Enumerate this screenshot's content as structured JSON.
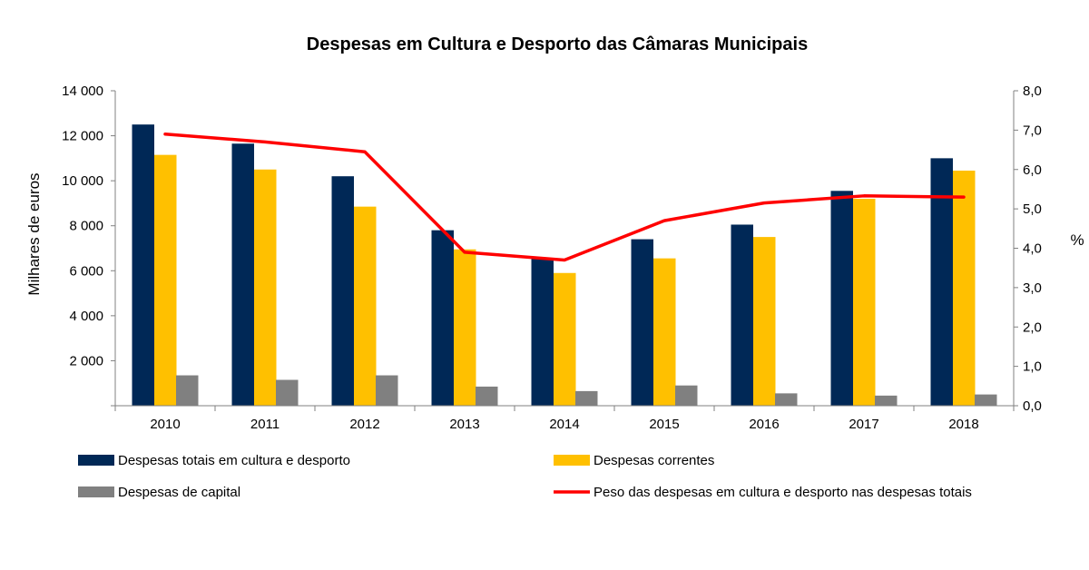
{
  "chart_data": {
    "type": "bar",
    "title": "Despesas em Cultura e Desporto das Câmaras Municipais",
    "categories": [
      "2010",
      "2011",
      "2012",
      "2013",
      "2014",
      "2015",
      "2016",
      "2017",
      "2018"
    ],
    "ylabel": "Milhares de euros",
    "ylabel_right": "%",
    "ylim": [
      0,
      14000
    ],
    "ylim_right": [
      0,
      8
    ],
    "y_ticks": [
      {
        "value": 2000,
        "label": "2 000"
      },
      {
        "value": 4000,
        "label": "4 000"
      },
      {
        "value": 6000,
        "label": "6 000"
      },
      {
        "value": 8000,
        "label": "8 000"
      },
      {
        "value": 10000,
        "label": "10 000"
      },
      {
        "value": 12000,
        "label": "12 000"
      },
      {
        "value": 14000,
        "label": "14 000"
      }
    ],
    "y_right_ticks": [
      {
        "value": 0,
        "label": "0,0"
      },
      {
        "value": 1,
        "label": "1,0"
      },
      {
        "value": 2,
        "label": "2,0"
      },
      {
        "value": 3,
        "label": "3,0"
      },
      {
        "value": 4,
        "label": "4,0"
      },
      {
        "value": 5,
        "label": "5,0"
      },
      {
        "value": 6,
        "label": "6,0"
      },
      {
        "value": 7,
        "label": "7,0"
      },
      {
        "value": 8,
        "label": "8,0"
      }
    ],
    "grid": false,
    "legend_position": "bottom",
    "series": [
      {
        "name": "Despesas totais em cultura e desporto",
        "kind": "bar",
        "axis": "left",
        "color": "#002856",
        "values": [
          12500,
          11650,
          10200,
          7800,
          6550,
          7400,
          8050,
          9550,
          11000
        ]
      },
      {
        "name": "Despesas correntes",
        "kind": "bar",
        "axis": "left",
        "color": "#FFC000",
        "values": [
          11150,
          10500,
          8850,
          6950,
          5900,
          6550,
          7500,
          9200,
          10450
        ]
      },
      {
        "name": "Despesas de capital",
        "kind": "bar",
        "axis": "left",
        "color": "#808080",
        "values": [
          1350,
          1150,
          1350,
          850,
          650,
          900,
          550,
          450,
          500
        ]
      },
      {
        "name": "Peso das despesas em cultura e desporto nas despesas totais",
        "kind": "line",
        "axis": "right",
        "color": "#FF0000",
        "values": [
          6.9,
          6.7,
          6.45,
          3.9,
          3.7,
          4.7,
          5.15,
          5.33,
          5.3
        ]
      }
    ]
  }
}
